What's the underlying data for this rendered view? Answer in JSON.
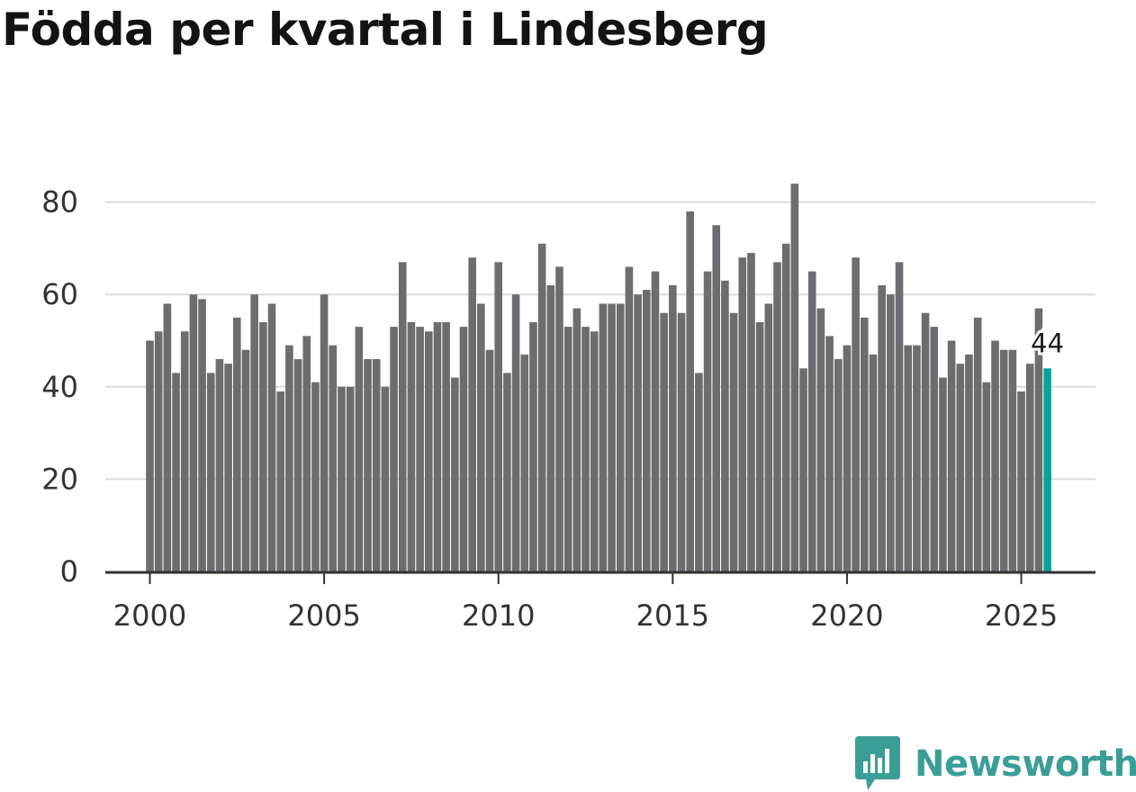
{
  "title": "Födda per kvartal i Lindesberg",
  "brand": {
    "name": "Newsworthy",
    "icon": "bar-chart-speech-bubble-icon",
    "color": "#3a9e97"
  },
  "colors": {
    "bar": "#6d6c71",
    "highlight": "#0aa39b",
    "grid": "#dcdcdc",
    "axis": "#333333"
  },
  "chart_data": {
    "type": "bar",
    "title": "Födda per kvartal i Lindesberg",
    "xlabel": "",
    "ylabel": "",
    "ylim": [
      0,
      86
    ],
    "yticks": [
      0,
      20,
      40,
      60,
      80
    ],
    "xticks": [
      "2000",
      "2005",
      "2010",
      "2015",
      "2020",
      "2025"
    ],
    "grid": true,
    "start_year": 2000,
    "values": [
      50,
      52,
      58,
      43,
      52,
      60,
      59,
      43,
      46,
      45,
      55,
      48,
      60,
      54,
      58,
      39,
      49,
      46,
      51,
      41,
      60,
      49,
      40,
      40,
      53,
      46,
      46,
      40,
      53,
      67,
      54,
      53,
      52,
      54,
      54,
      42,
      53,
      68,
      58,
      48,
      67,
      43,
      60,
      47,
      54,
      71,
      62,
      66,
      53,
      57,
      53,
      52,
      58,
      58,
      58,
      66,
      60,
      61,
      65,
      56,
      62,
      56,
      78,
      43,
      65,
      75,
      63,
      56,
      68,
      69,
      54,
      58,
      67,
      71,
      84,
      44,
      65,
      57,
      51,
      46,
      49,
      68,
      55,
      47,
      62,
      60,
      67,
      49,
      49,
      56,
      53,
      42,
      50,
      45,
      47,
      55,
      41,
      50,
      48,
      48,
      39,
      45,
      57,
      44
    ],
    "highlight_last": true,
    "annotation": "44"
  }
}
